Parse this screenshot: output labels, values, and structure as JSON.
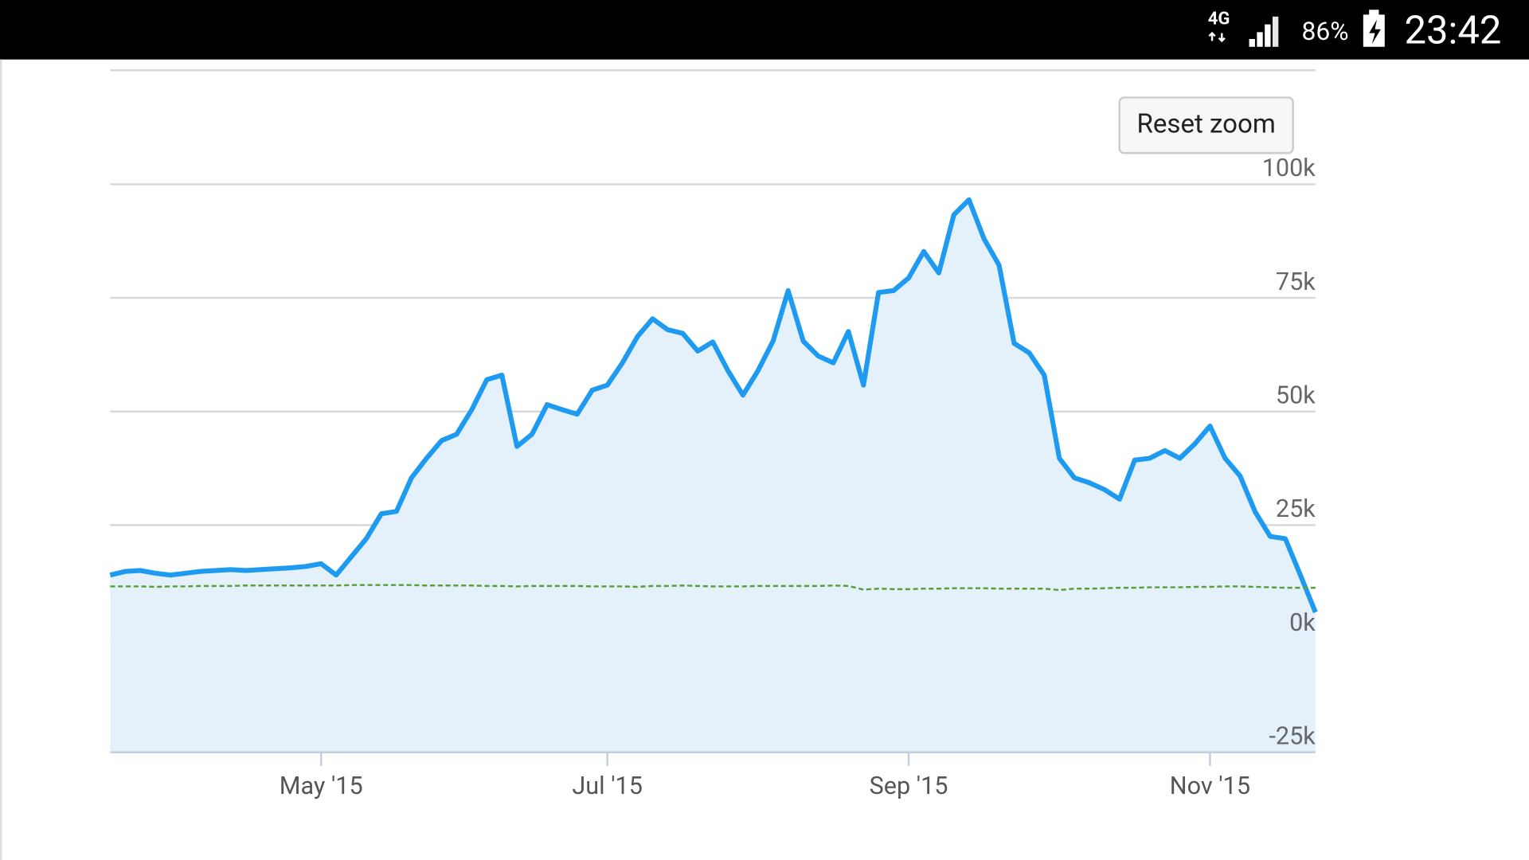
{
  "status_bar": {
    "network": "4G",
    "battery": "86%",
    "time": "23:42"
  },
  "reset_button": "Reset zoom",
  "chart_data": {
    "type": "line",
    "categories": [
      null,
      null,
      null,
      null,
      null,
      null,
      null,
      null,
      null,
      null,
      null,
      null,
      null,
      null,
      "May '15",
      null,
      null,
      null,
      null,
      null,
      null,
      null,
      null,
      null,
      null,
      null,
      null,
      null,
      null,
      null,
      null,
      null,
      null,
      "Jul '15",
      null,
      null,
      null,
      null,
      null,
      null,
      null,
      null,
      null,
      null,
      null,
      null,
      null,
      null,
      null,
      null,
      null,
      null,
      null,
      "Sep '15",
      null,
      null,
      null,
      null,
      null,
      null,
      null,
      null,
      null,
      null,
      null,
      null,
      null,
      null,
      null,
      null,
      null,
      null,
      null,
      "Nov '15",
      null,
      null,
      null,
      null,
      null,
      null,
      null
    ],
    "series": [
      {
        "color": "#1e9bf0",
        "area": true,
        "area_color": "#e4f0fa",
        "line_style": "solid",
        "values": [
          14000,
          14800,
          15000,
          14400,
          14000,
          14400,
          14800,
          15000,
          15200,
          15000,
          15200,
          15400,
          15600,
          15900,
          16500,
          14000,
          18000,
          22000,
          27500,
          28000,
          35400,
          39700,
          43600,
          45000,
          50400,
          57000,
          58000,
          42300,
          45000,
          51500,
          50400,
          49400,
          54700,
          55800,
          60700,
          66500,
          70400,
          68000,
          67200,
          63300,
          65300,
          59000,
          53600,
          59000,
          65500,
          76600,
          65500,
          62200,
          60700,
          67600,
          55800,
          76200,
          76600,
          79400,
          85200,
          80500,
          93300,
          96600,
          88000,
          82200,
          65000,
          62900,
          58000,
          39700,
          35400,
          34300,
          32800,
          30700,
          39300,
          39700,
          41400,
          39700,
          42900,
          46800,
          39700,
          35800,
          27900,
          22500,
          22000,
          14000,
          5800
        ]
      },
      {
        "color": "#5a9e3a",
        "area": false,
        "line_style": "dashed",
        "values": [
          11500,
          11500,
          11500,
          11400,
          11500,
          11500,
          11600,
          11600,
          11600,
          11700,
          11700,
          11700,
          11700,
          11700,
          11700,
          11700,
          11800,
          11800,
          11800,
          11800,
          11800,
          11700,
          11700,
          11700,
          11700,
          11600,
          11600,
          11500,
          11600,
          11600,
          11600,
          11600,
          11500,
          11500,
          11500,
          11400,
          11600,
          11600,
          11700,
          11600,
          11500,
          11500,
          11500,
          11600,
          11600,
          11600,
          11600,
          11600,
          11700,
          11600,
          10800,
          11000,
          10900,
          10900,
          11000,
          11000,
          11100,
          11100,
          11100,
          11000,
          11000,
          11000,
          11000,
          10700,
          11000,
          11000,
          11100,
          11200,
          11200,
          11300,
          11300,
          11300,
          11400,
          11400,
          11500,
          11500,
          11400,
          11300,
          11200,
          11200,
          11200
        ]
      }
    ],
    "ylim": [
      -25000,
      125000
    ],
    "yticks": [
      {
        "value": -25000,
        "label": "-25k"
      },
      {
        "value": 0,
        "label": "0k"
      },
      {
        "value": 25000,
        "label": "25k"
      },
      {
        "value": 50000,
        "label": "50k"
      },
      {
        "value": 75000,
        "label": "75k"
      },
      {
        "value": 100000,
        "label": "100k"
      }
    ],
    "grid": true
  }
}
